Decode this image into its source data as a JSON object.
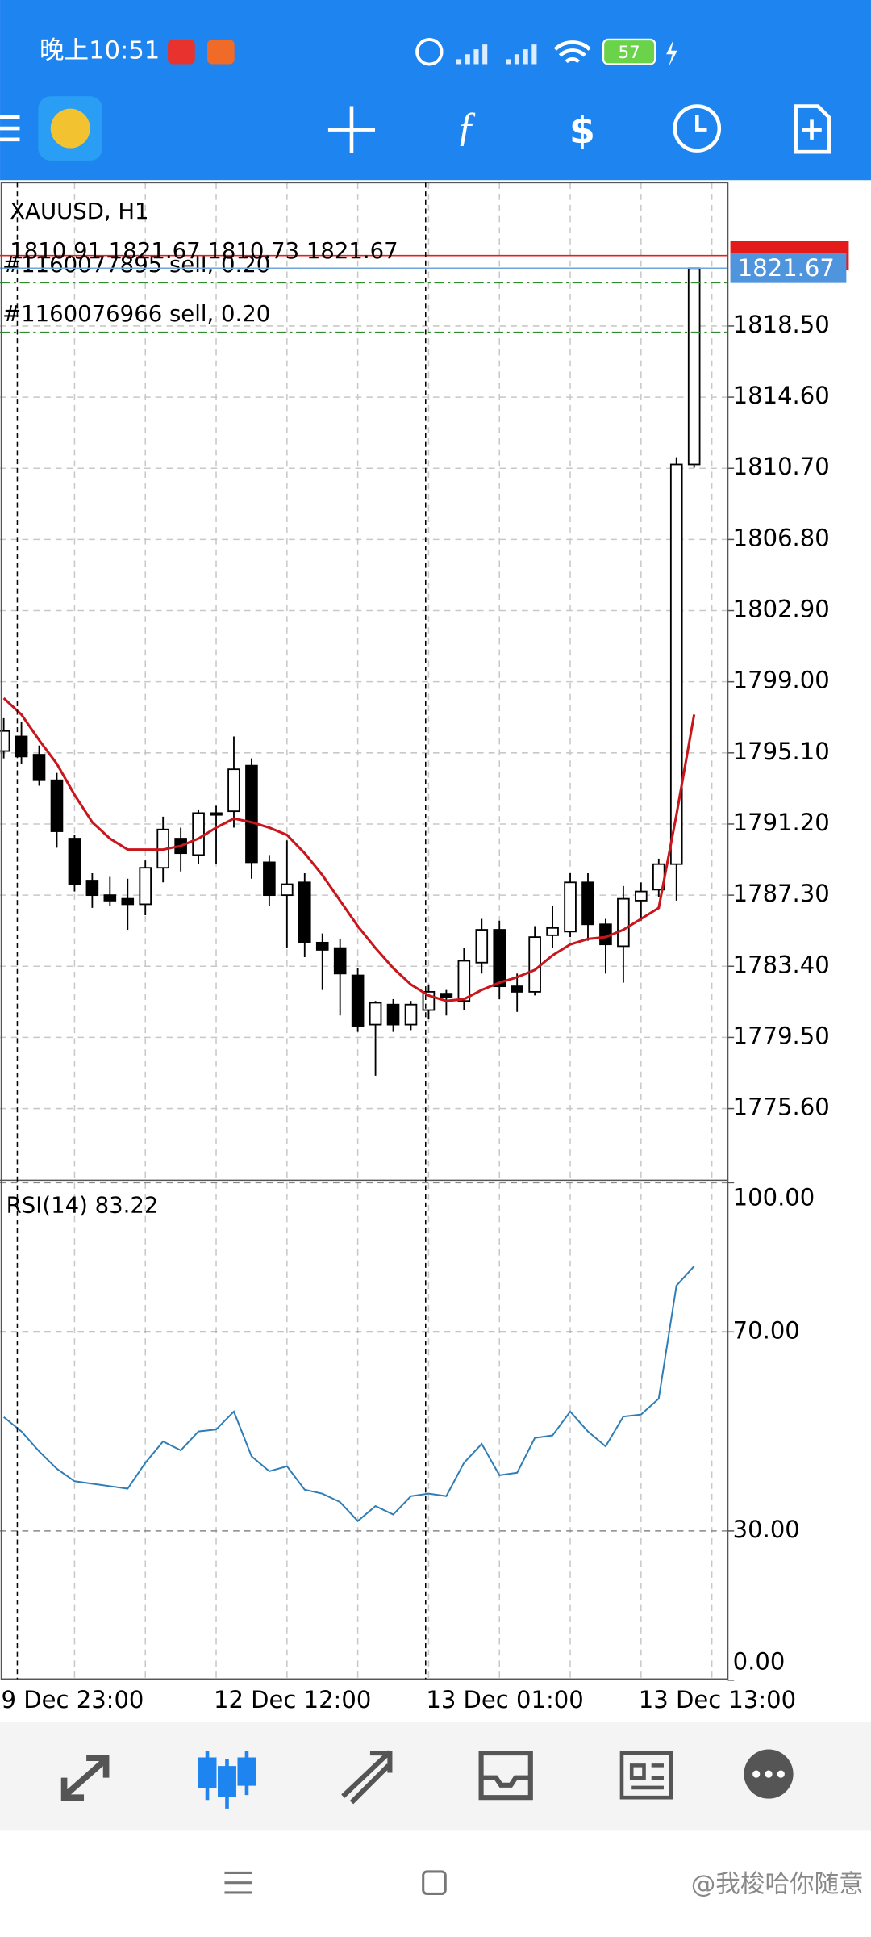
{
  "status_bar": {
    "time": "晚上10:51",
    "battery": "57"
  },
  "watermark": "@我梭哈你随意",
  "chart_data": [
    {
      "type": "candlestick",
      "title": "XAUUSD, H1",
      "ohlc_text": "1810.91 1821.67 1810.73 1821.67",
      "categories": [
        "9 Dec 23:00",
        null,
        null,
        null,
        null,
        null,
        null,
        null,
        null,
        null,
        null,
        null,
        "12 Dec 12:00",
        null,
        null,
        null,
        null,
        null,
        null,
        null,
        null,
        null,
        null,
        null,
        "13 Dec 01:00",
        null,
        null,
        null,
        null,
        null,
        null,
        null,
        null,
        null,
        null,
        null,
        "13 Dec 13:00",
        null,
        null,
        null
      ],
      "open": [
        1795.2,
        1796.0,
        1795.0,
        1793.6,
        1790.4,
        1788.1,
        1787.3,
        1787.1,
        1786.8,
        1788.8,
        1790.4,
        1789.5,
        1791.7,
        1791.9,
        1794.4,
        1789.1,
        1787.3,
        1788.0,
        1784.7,
        1784.4,
        1782.9,
        1780.2,
        1781.3,
        1780.2,
        1781.0,
        1781.9,
        1781.5,
        1783.6,
        1785.4,
        1782.3,
        1782.0,
        1785.1,
        1785.3,
        1788.0,
        1785.7,
        1784.5,
        1787.0,
        1787.6,
        1789.0,
        1810.91
      ],
      "high": [
        1797.0,
        1796.8,
        1795.5,
        1794.0,
        1790.6,
        1788.5,
        1788.3,
        1788.2,
        1789.2,
        1791.6,
        1791.0,
        1792.0,
        1792.2,
        1796.0,
        1794.8,
        1789.5,
        1790.3,
        1788.5,
        1785.2,
        1784.9,
        1783.3,
        1781.5,
        1781.6,
        1781.5,
        1782.4,
        1782.1,
        1784.4,
        1786.0,
        1785.9,
        1783.0,
        1785.6,
        1786.7,
        1788.5,
        1788.5,
        1786.0,
        1787.8,
        1788.0,
        1789.3,
        1811.3,
        1821.67
      ],
      "low": [
        1794.8,
        1794.5,
        1793.3,
        1789.9,
        1787.5,
        1786.6,
        1786.7,
        1785.4,
        1786.2,
        1788.0,
        1788.6,
        1789.0,
        1789.0,
        1791.0,
        1788.2,
        1786.7,
        1784.4,
        1783.9,
        1782.1,
        1780.7,
        1779.8,
        1777.4,
        1779.8,
        1779.9,
        1780.5,
        1780.7,
        1781.0,
        1783.0,
        1781.6,
        1780.9,
        1781.8,
        1784.4,
        1785.0,
        1784.8,
        1783.0,
        1782.5,
        1785.9,
        1787.2,
        1787.0,
        1810.73
      ],
      "close": [
        1796.3,
        1794.9,
        1793.6,
        1790.8,
        1787.9,
        1787.3,
        1787.0,
        1786.8,
        1788.8,
        1790.9,
        1789.6,
        1791.8,
        1791.8,
        1794.2,
        1789.1,
        1787.3,
        1787.9,
        1784.7,
        1784.3,
        1783.0,
        1780.1,
        1781.4,
        1780.2,
        1781.3,
        1782.0,
        1781.7,
        1783.7,
        1785.4,
        1782.3,
        1782.0,
        1785.0,
        1785.5,
        1788.0,
        1785.7,
        1784.6,
        1787.1,
        1787.5,
        1789.0,
        1810.91,
        1821.67
      ],
      "up_color": "#ffffff",
      "down_color": "#000000",
      "ma": {
        "color": "#c8161d",
        "values": [
          1798.1,
          1797.2,
          1795.8,
          1794.5,
          1792.8,
          1791.3,
          1790.4,
          1789.8,
          1789.8,
          1789.8,
          1790.0,
          1790.4,
          1791.0,
          1791.5,
          1791.3,
          1791.0,
          1790.6,
          1789.6,
          1788.4,
          1787.0,
          1785.6,
          1784.4,
          1783.3,
          1782.4,
          1781.8,
          1781.5,
          1781.6,
          1782.1,
          1782.5,
          1782.8,
          1783.2,
          1784.0,
          1784.6,
          1784.9,
          1785.0,
          1785.4,
          1786.0,
          1786.6,
          1791.7,
          1797.2
        ]
      },
      "orders": [
        {
          "label": "#1160077895 sell, 0.20",
          "price": 1820.87
        },
        {
          "label": "#1160076966 sell, 0.20",
          "price": 1818.16
        }
      ],
      "ask": 1822.36,
      "bid": 1821.67,
      "ylim": [
        1771.74,
        1826.22
      ],
      "yticks": [
        {
          "value": 1818.5,
          "label": "1818.50"
        },
        {
          "value": 1814.6,
          "label": "1814.60"
        },
        {
          "value": 1810.7,
          "label": "1810.70"
        },
        {
          "value": 1806.8,
          "label": "1806.80"
        },
        {
          "value": 1802.9,
          "label": "1802.90"
        },
        {
          "value": 1799.0,
          "label": "1799.00"
        },
        {
          "value": 1795.1,
          "label": "1795.10"
        },
        {
          "value": 1791.2,
          "label": "1791.20"
        },
        {
          "value": 1787.3,
          "label": "1787.30"
        },
        {
          "value": 1783.4,
          "label": "1783.40"
        },
        {
          "value": 1779.5,
          "label": "1779.50"
        },
        {
          "value": 1775.6,
          "label": "1775.60"
        }
      ],
      "grid": true
    },
    {
      "type": "line",
      "title": "RSI(14) 83.22",
      "series": [
        {
          "color": "#2e7db6",
          "values": [
            52.9,
            50,
            46,
            42.5,
            40,
            39.5,
            39,
            38.5,
            43.7,
            48,
            46.2,
            50,
            50.4,
            54,
            45,
            42,
            43,
            38.3,
            37.5,
            35.8,
            32,
            35,
            33.3,
            37,
            37.5,
            37,
            43.7,
            47.5,
            41.2,
            41.7,
            48.7,
            49.2,
            54,
            50,
            47,
            53,
            53.4,
            56.6,
            79.3,
            83.22
          ]
        }
      ],
      "ylim": [
        0,
        100
      ],
      "yticks": [
        {
          "value": 100,
          "label": "100.00"
        },
        {
          "value": 70,
          "label": "70.00"
        },
        {
          "value": 30,
          "label": "30.00"
        },
        {
          "value": 0,
          "label": "0.00"
        }
      ],
      "grid": true
    }
  ]
}
